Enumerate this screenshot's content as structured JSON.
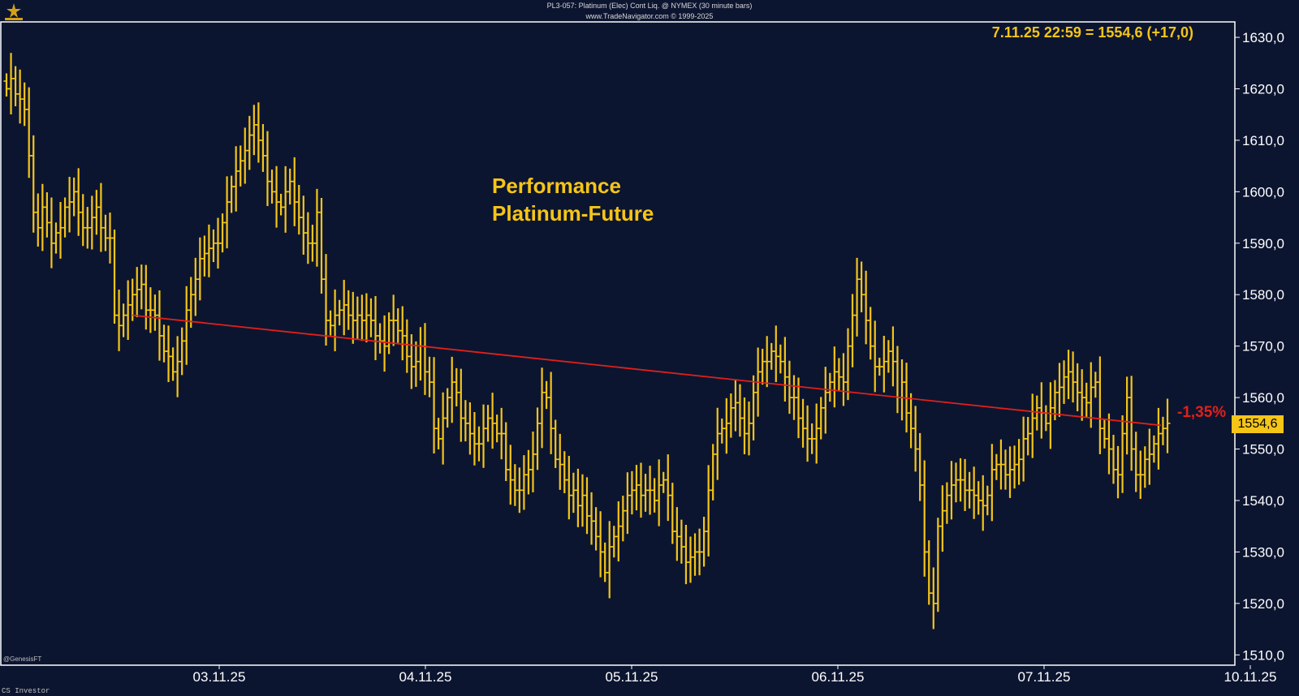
{
  "header": {
    "title": "PL3-057: Platinum (Elec) Cont Liq. @ NYMEX (30 minute bars)",
    "copyright": "www.TradeNavigator.com © 1999-2025"
  },
  "readout": "7.11.25 22:59 = 1554,6 (+17,0)",
  "annotation": {
    "line1": "Performance",
    "line2": "Platinum-Future"
  },
  "performance_label": "-1,35%",
  "last_price_tag": "1554,6",
  "corner_mark": "@GenesisFT",
  "footer": "CS Investor",
  "colors": {
    "background": "#0c1530",
    "bars": "#f5c518",
    "trendline": "#e0201a",
    "axis": "#ffffff"
  },
  "chart_data": {
    "type": "line",
    "title": "",
    "xlabel": "",
    "ylabel": "",
    "ylim": [
      1508,
      1633
    ],
    "y_ticks": [
      "1510,0",
      "1520,0",
      "1530,0",
      "1540,0",
      "1550,0",
      "1560,0",
      "1570,0",
      "1580,0",
      "1590,0",
      "1600,0",
      "1610,0",
      "1620,0",
      "1630,0"
    ],
    "x_ticks": [
      "03.11.25",
      "04.11.25",
      "05.11.25",
      "06.11.25",
      "07.11.25",
      "10.11.25"
    ],
    "grid": false,
    "series": [
      {
        "values": [
          1620,
          1622,
          1619,
          1618,
          1616,
          1607,
          1596,
          1593,
          1597,
          1594,
          1590,
          1592,
          1593,
          1597,
          1598,
          1600,
          1596,
          1593,
          1593,
          1595,
          1597,
          1593,
          1591,
          1591,
          1576,
          1574,
          1576,
          1578,
          1580,
          1581,
          1582,
          1577,
          1577,
          1576,
          1572,
          1569,
          1568,
          1565,
          1567,
          1571,
          1577,
          1580,
          1583,
          1587,
          1588,
          1589,
          1590,
          1590,
          1594,
          1598,
          1601,
          1604,
          1606,
          1608,
          1611,
          1613,
          1610,
          1607,
          1602,
          1600,
          1598,
          1597,
          1600,
          1602,
          1598,
          1595,
          1592,
          1590,
          1590,
          1596,
          1583,
          1575,
          1574,
          1576,
          1577,
          1578,
          1576,
          1575,
          1576,
          1575,
          1576,
          1575,
          1572,
          1571,
          1570,
          1575,
          1575,
          1573,
          1572,
          1568,
          1566,
          1567,
          1570,
          1565,
          1563,
          1554,
          1552,
          1556,
          1560,
          1563,
          1561,
          1556,
          1555,
          1553,
          1551,
          1551,
          1554,
          1556,
          1555,
          1553,
          1553,
          1546,
          1544,
          1542,
          1542,
          1545,
          1546,
          1549,
          1555,
          1561,
          1560,
          1554,
          1548,
          1547,
          1544,
          1541,
          1542,
          1539,
          1541,
          1537,
          1536,
          1533,
          1530,
          1526,
          1531,
          1533,
          1535,
          1538,
          1541,
          1542,
          1543,
          1541,
          1542,
          1542,
          1540,
          1543,
          1544,
          1541,
          1534,
          1533,
          1531,
          1528,
          1529,
          1530,
          1530,
          1534,
          1542,
          1549,
          1553,
          1554,
          1555,
          1558,
          1559,
          1556,
          1553,
          1555,
          1561,
          1565,
          1567,
          1567,
          1569,
          1568,
          1567,
          1564,
          1560,
          1560,
          1556,
          1554,
          1552,
          1552,
          1554,
          1558,
          1561,
          1563,
          1565,
          1564,
          1563,
          1570,
          1576,
          1583,
          1580,
          1575,
          1570,
          1566,
          1566,
          1567,
          1569,
          1567,
          1560,
          1563,
          1557,
          1554,
          1550,
          1543,
          1530,
          1522,
          1520,
          1535,
          1538,
          1541,
          1543,
          1544,
          1544,
          1542,
          1542,
          1541,
          1540,
          1539,
          1541,
          1546,
          1547,
          1547,
          1545,
          1546,
          1547,
          1548,
          1552,
          1553,
          1556,
          1558,
          1557,
          1555,
          1558,
          1561,
          1562,
          1564,
          1565,
          1563,
          1561,
          1560,
          1559,
          1562,
          1563,
          1554,
          1552,
          1550,
          1546,
          1545,
          1553,
          1560,
          1550,
          1545,
          1545,
          1548,
          1549,
          1551,
          1553,
          1554,
          1555
        ]
      }
    ],
    "trendline": {
      "start": 1576,
      "end": 1554.6
    },
    "last_price": 1554.6
  }
}
